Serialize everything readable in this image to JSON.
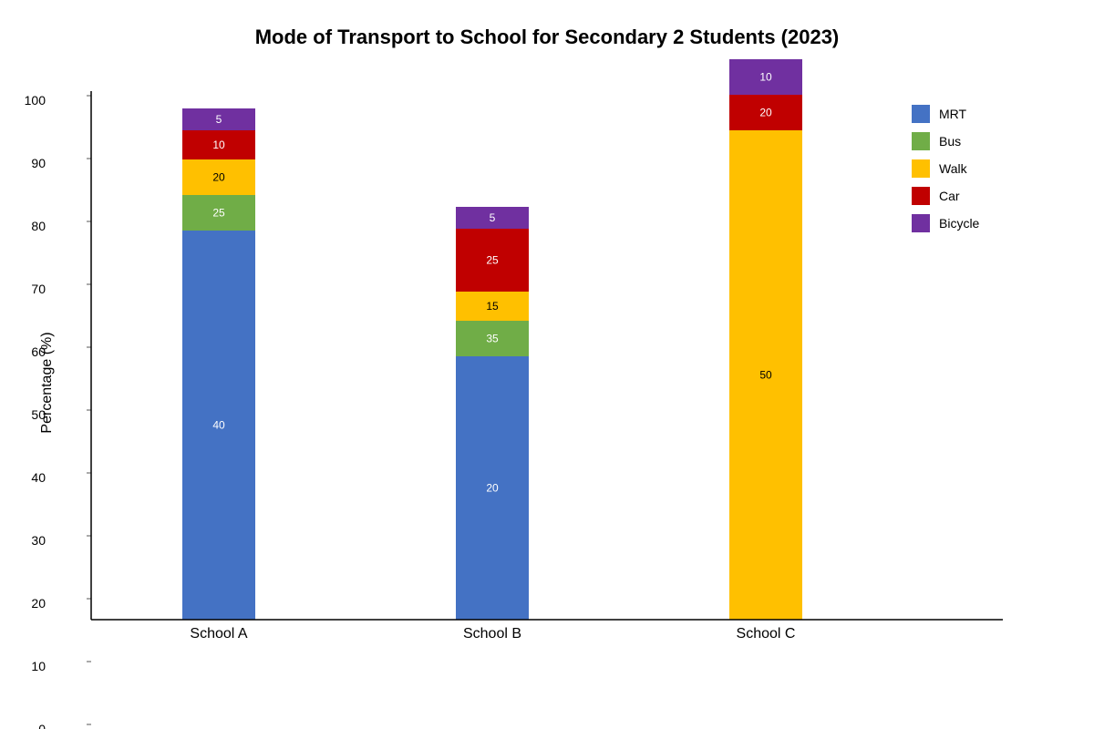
{
  "chart_data": {
    "type": "bar",
    "stacked": true,
    "title": "Mode of Transport to School for Secondary 2 Students (2023)",
    "xlabel": "",
    "ylabel": "Percentage (%)",
    "categories": [
      "School A",
      "School B",
      "School C"
    ],
    "y_ticks": [
      0,
      10,
      20,
      30,
      40,
      50,
      60,
      70,
      80,
      90,
      100
    ],
    "series": [
      {
        "name": "MRT",
        "color": "#4472C4",
        "values": [
          40,
          20,
          0
        ]
      },
      {
        "name": "Bus",
        "color": "#70AD47",
        "values": [
          25,
          35,
          0
        ]
      },
      {
        "name": "Walk",
        "color": "#FFC000",
        "values": [
          20,
          15,
          50
        ]
      },
      {
        "name": "Car",
        "color": "#C00000",
        "values": [
          10,
          25,
          20
        ]
      },
      {
        "name": "Bicycle",
        "color": "#7030A0",
        "values": [
          5,
          5,
          10
        ]
      }
    ],
    "legend": "right"
  }
}
